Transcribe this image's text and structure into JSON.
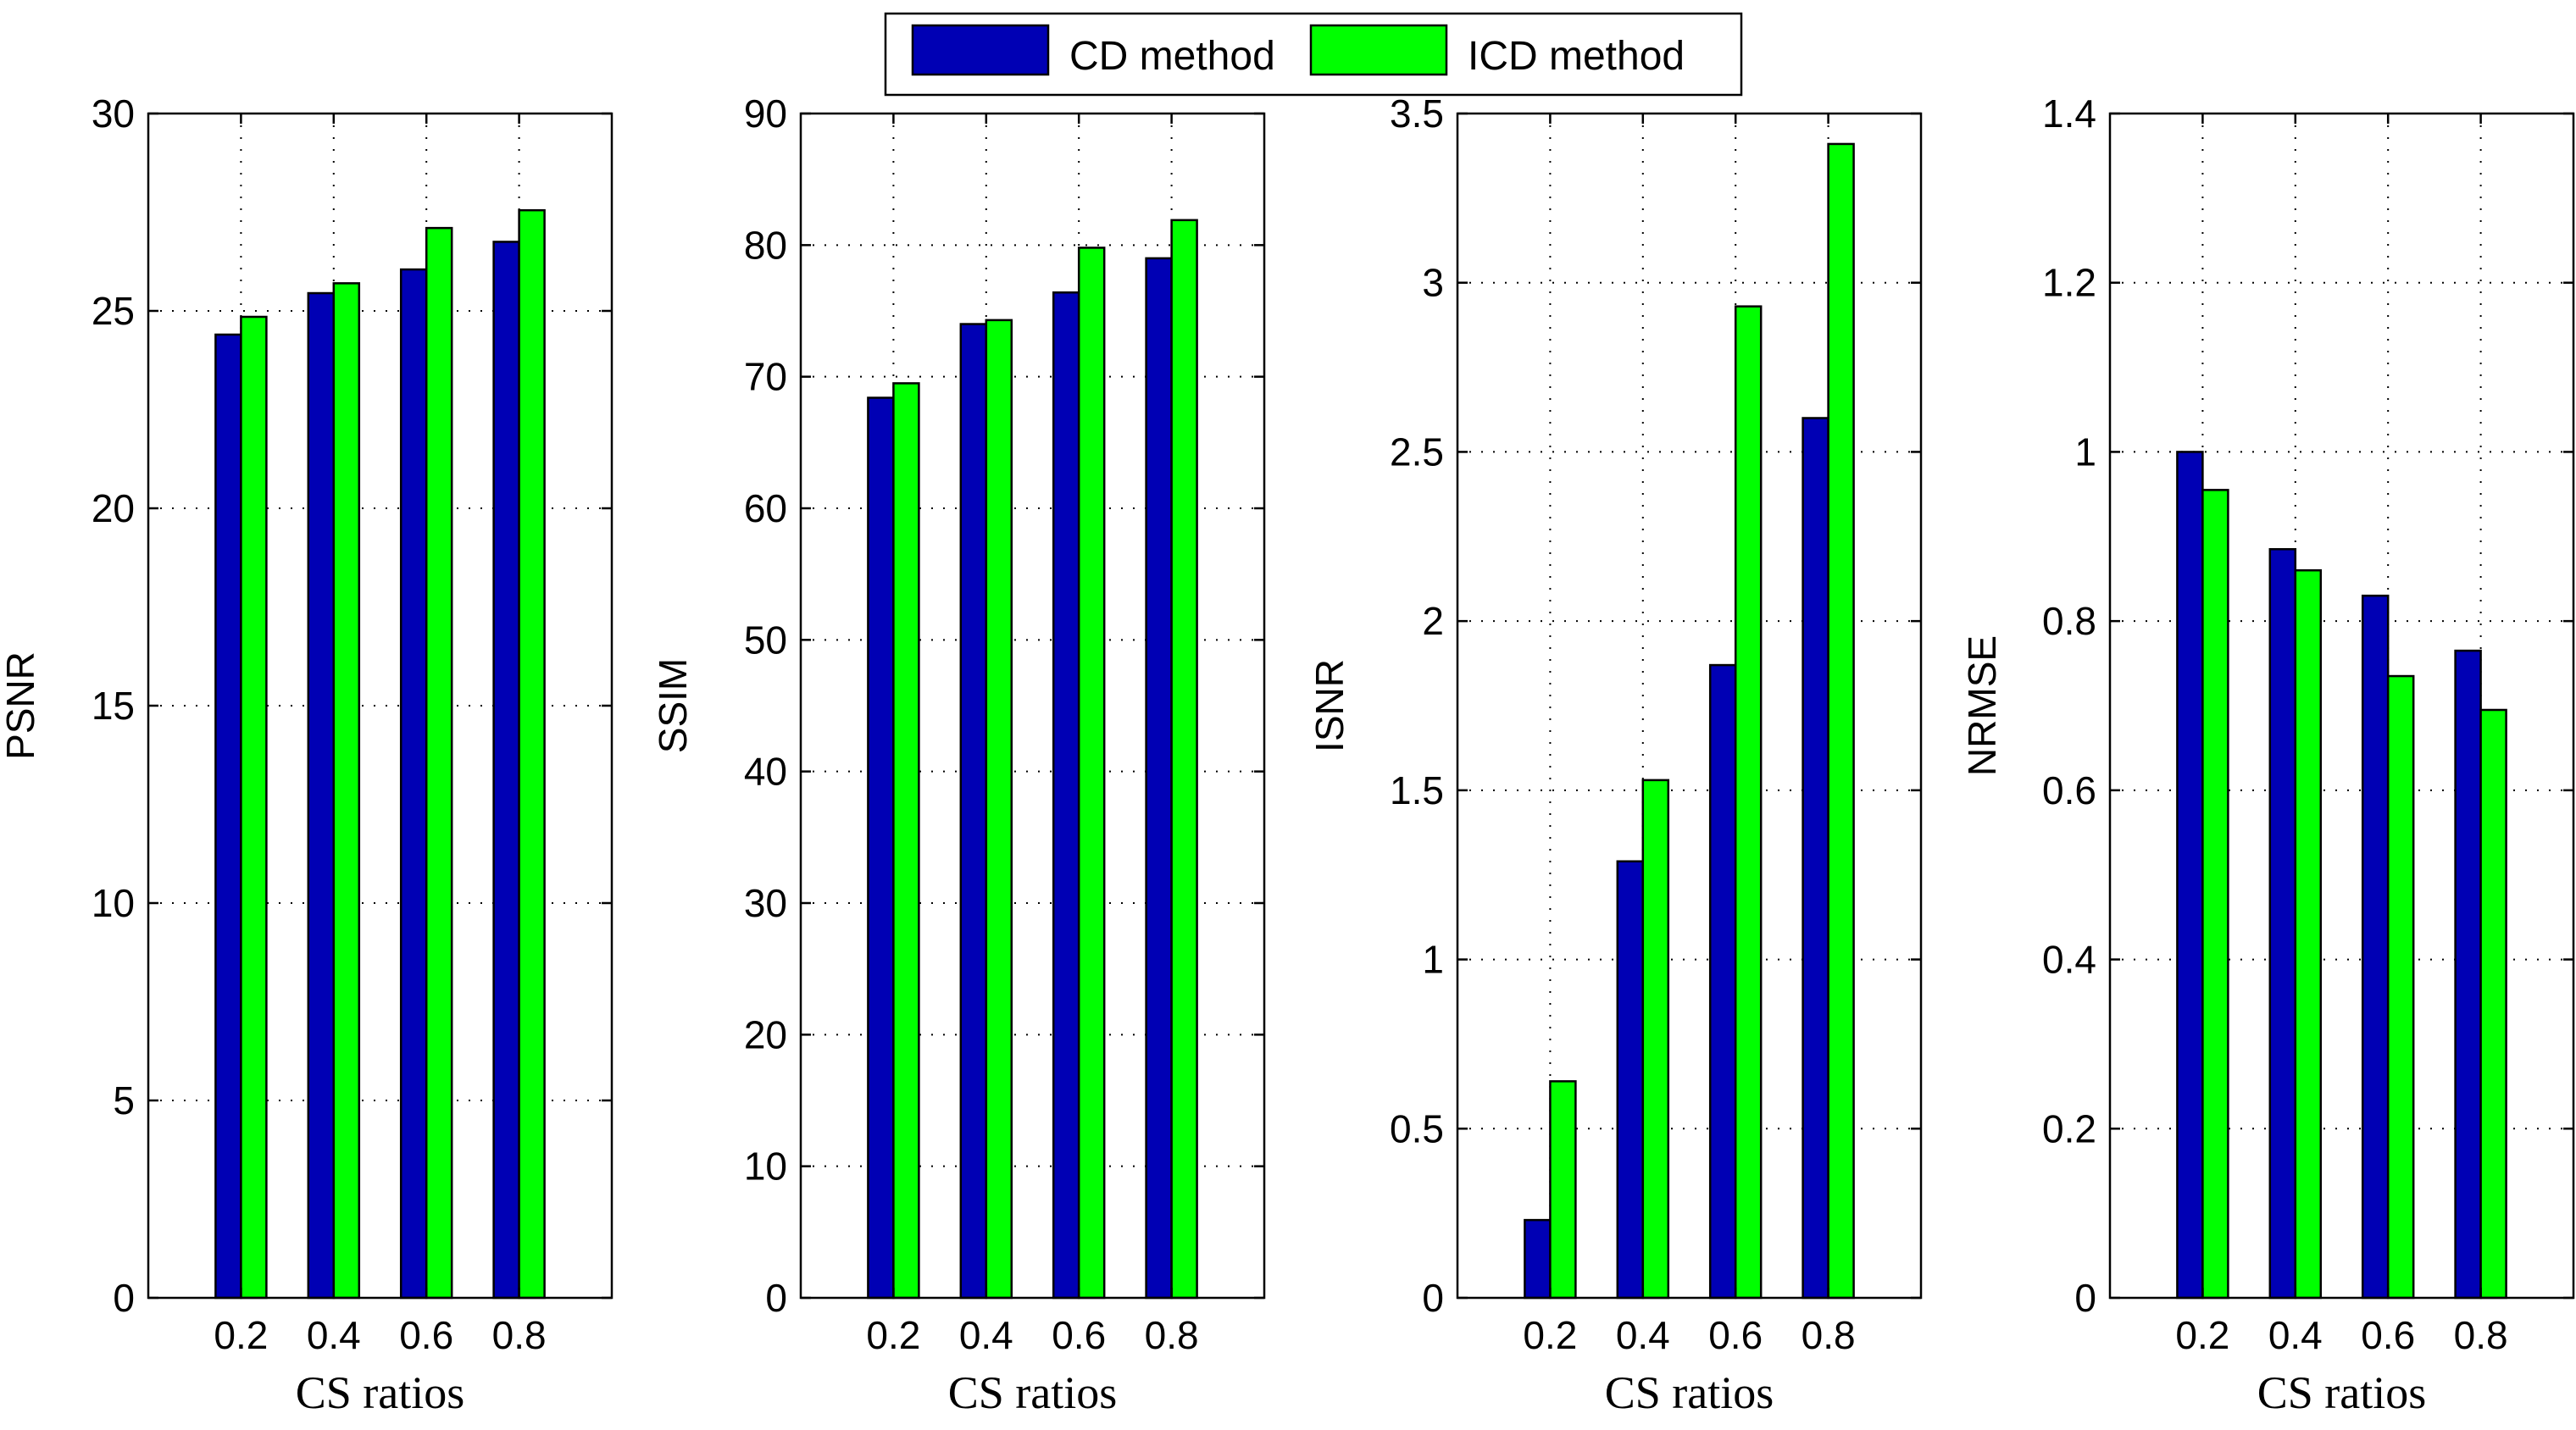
{
  "legend": {
    "entries": [
      {
        "label": "CD method",
        "color": "#0000b4"
      },
      {
        "label": "ICD method",
        "color": "#00ff00"
      }
    ],
    "placement": "top-center"
  },
  "chart_data": [
    {
      "type": "bar",
      "title": "",
      "xlabel": "CS ratios",
      "ylabel": "PSNR",
      "categories": [
        "0.2",
        "0.4",
        "0.6",
        "0.8"
      ],
      "xlim": [
        0,
        1
      ],
      "ylim": [
        0,
        30
      ],
      "yticks": [
        "0",
        "5",
        "10",
        "15",
        "20",
        "25",
        "30"
      ],
      "grid": true,
      "series": [
        {
          "name": "CD method",
          "color": "#0000b4",
          "values": [
            24.4,
            25.45,
            26.05,
            26.75
          ]
        },
        {
          "name": "ICD method",
          "color": "#00ff00",
          "values": [
            24.85,
            25.7,
            27.1,
            27.55
          ]
        }
      ]
    },
    {
      "type": "bar",
      "title": "",
      "xlabel": "CS ratios",
      "ylabel": "SSIM",
      "categories": [
        "0.2",
        "0.4",
        "0.6",
        "0.8"
      ],
      "xlim": [
        0,
        1
      ],
      "ylim": [
        0,
        90
      ],
      "yticks": [
        "0",
        "10",
        "20",
        "30",
        "40",
        "50",
        "60",
        "70",
        "80",
        "90"
      ],
      "grid": true,
      "series": [
        {
          "name": "CD method",
          "color": "#0000b4",
          "values": [
            68.4,
            74.0,
            76.4,
            79.0
          ]
        },
        {
          "name": "ICD method",
          "color": "#00ff00",
          "values": [
            69.5,
            74.3,
            79.8,
            81.9
          ]
        }
      ]
    },
    {
      "type": "bar",
      "title": "",
      "xlabel": "CS ratios",
      "ylabel": "ISNR",
      "categories": [
        "0.2",
        "0.4",
        "0.6",
        "0.8"
      ],
      "xlim": [
        0,
        1
      ],
      "ylim": [
        0,
        3.5
      ],
      "yticks": [
        "0",
        "0.5",
        "1",
        "1.5",
        "2",
        "2.5",
        "3",
        "3.5"
      ],
      "grid": true,
      "series": [
        {
          "name": "CD method",
          "color": "#0000b4",
          "values": [
            0.23,
            1.29,
            1.87,
            2.6
          ]
        },
        {
          "name": "ICD method",
          "color": "#00ff00",
          "values": [
            0.64,
            1.53,
            2.93,
            3.41
          ]
        }
      ]
    },
    {
      "type": "bar",
      "title": "",
      "xlabel": "CS ratios",
      "ylabel": "NRMSE",
      "categories": [
        "0.2",
        "0.4",
        "0.6",
        "0.8"
      ],
      "xlim": [
        0,
        1
      ],
      "ylim": [
        0,
        1.4
      ],
      "yticks": [
        "0",
        "0.2",
        "0.4",
        "0.6",
        "0.8",
        "1",
        "1.2",
        "1.4"
      ],
      "grid": true,
      "series": [
        {
          "name": "CD method",
          "color": "#0000b4",
          "values": [
            1.0,
            0.885,
            0.83,
            0.765
          ]
        },
        {
          "name": "ICD method",
          "color": "#00ff00",
          "values": [
            0.955,
            0.86,
            0.735,
            0.695
          ]
        }
      ]
    }
  ]
}
